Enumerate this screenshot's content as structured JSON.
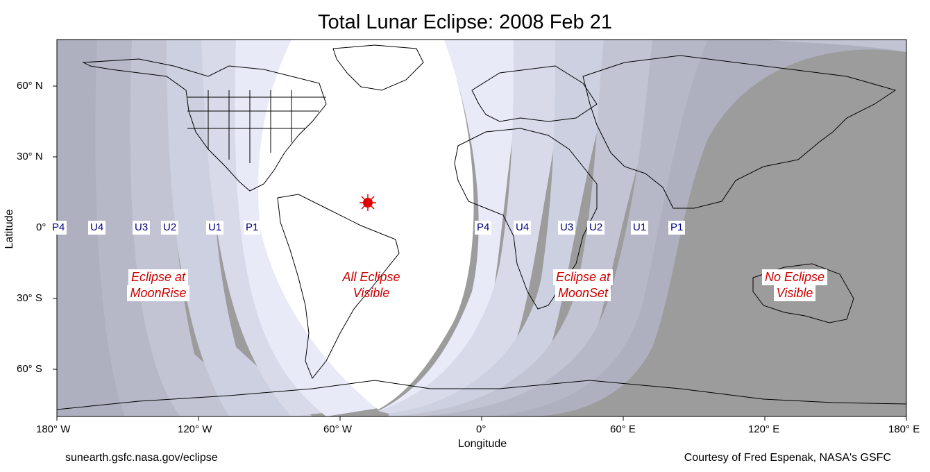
{
  "title": "Total Lunar Eclipse: 2008 Feb 21",
  "axes": {
    "xlabel": "Longitude",
    "ylabel": "Latitude",
    "xticks": [
      "180° W",
      "120° W",
      "60° W",
      "0°",
      "60° E",
      "120° E",
      "180° E"
    ],
    "yticks": [
      "60° N",
      "30° N",
      "0°",
      "30° S",
      "60° S"
    ]
  },
  "contacts_west": [
    "P4",
    "U4",
    "U3",
    "U2",
    "U1",
    "P1"
  ],
  "contacts_east": [
    "P4",
    "U4",
    "U3",
    "U2",
    "U1",
    "P1"
  ],
  "regions": {
    "moonrise": [
      "Eclipse at",
      "MoonRise"
    ],
    "all": [
      "All Eclipse",
      "Visible"
    ],
    "moonset": [
      "Eclipse at",
      "MoonSet"
    ],
    "none": [
      "No Eclipse",
      "Visible"
    ]
  },
  "subsolar_marker": {
    "icon": "sun-marker-icon",
    "lon": -47,
    "lat": 10
  },
  "credits": {
    "left": "sunearth.gsfc.nasa.gov/eclipse",
    "right": "Courtesy of Fred Espenak, NASA's GSFC"
  },
  "colors": {
    "night": "#9c9c9c",
    "band_dark": "#aeb0bf",
    "band_mid": "#c2c4d4",
    "band_light": "#d8daea",
    "band_lightest": "#e8eaf8",
    "visible": "#ffffff",
    "label_red": "#cc0000",
    "contact_blue": "#000080"
  }
}
